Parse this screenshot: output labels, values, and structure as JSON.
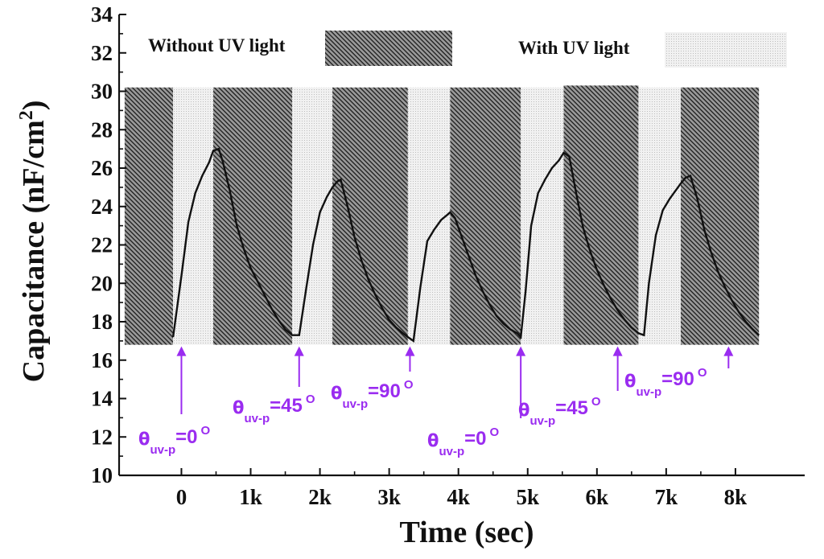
{
  "chart_data": {
    "type": "line",
    "xlabel": "Time (sec)",
    "ylabel": "Capacitance (nF/cm",
    "ylabel_sup": "2",
    "ylabel_close": ")",
    "xlim": [
      -900,
      9000
    ],
    "ylim": [
      10,
      34
    ],
    "x_ticks": [
      0,
      1000,
      2000,
      3000,
      4000,
      5000,
      6000,
      7000,
      8000
    ],
    "x_tick_labels": [
      "0",
      "1k",
      "2k",
      "3k",
      "4k",
      "5k",
      "6k",
      "7k",
      "8k"
    ],
    "y_ticks": [
      10,
      12,
      14,
      16,
      18,
      20,
      22,
      24,
      26,
      28,
      30,
      32,
      34
    ],
    "y_tick_labels": [
      "10",
      "12",
      "14",
      "16",
      "18",
      "20",
      "22",
      "24",
      "26",
      "28",
      "30",
      "32",
      "34"
    ],
    "legend": [
      {
        "label": "Without UV light",
        "pattern": "hatch-dark"
      },
      {
        "label": "With UV light",
        "pattern": "dots-light"
      }
    ],
    "shaded_regions": [
      {
        "x": [
          -820,
          -120
        ],
        "y": [
          16.8,
          30.2
        ],
        "state": "without_uv"
      },
      {
        "x": [
          -120,
          460
        ],
        "y": [
          16.8,
          30.2
        ],
        "state": "with_uv"
      },
      {
        "x": [
          460,
          1600
        ],
        "y": [
          16.8,
          30.2
        ],
        "state": "without_uv"
      },
      {
        "x": [
          1600,
          2180
        ],
        "y": [
          16.8,
          30.2
        ],
        "state": "with_uv"
      },
      {
        "x": [
          2180,
          3270
        ],
        "y": [
          16.8,
          30.2
        ],
        "state": "without_uv"
      },
      {
        "x": [
          3270,
          3880
        ],
        "y": [
          16.8,
          30.2
        ],
        "state": "with_uv"
      },
      {
        "x": [
          3880,
          4900
        ],
        "y": [
          16.8,
          30.2
        ],
        "state": "without_uv"
      },
      {
        "x": [
          4900,
          5520
        ],
        "y": [
          16.8,
          30.2
        ],
        "state": "with_uv"
      },
      {
        "x": [
          5520,
          6600
        ],
        "y": [
          16.8,
          30.3
        ],
        "state": "without_uv"
      },
      {
        "x": [
          6600,
          7210
        ],
        "y": [
          16.8,
          30.2
        ],
        "state": "with_uv"
      },
      {
        "x": [
          7210,
          8340
        ],
        "y": [
          16.8,
          30.2
        ],
        "state": "without_uv"
      }
    ],
    "series": [
      {
        "name": "Capacitance",
        "x": [
          -120,
          0,
          100,
          200,
          300,
          400,
          460,
          540,
          600,
          700,
          800,
          900,
          1000,
          1100,
          1200,
          1300,
          1400,
          1500,
          1600,
          1700,
          1800,
          1900,
          2000,
          2100,
          2180,
          2250,
          2300,
          2400,
          2500,
          2600,
          2700,
          2800,
          2900,
          3000,
          3100,
          3200,
          3270,
          3350,
          3450,
          3550,
          3650,
          3750,
          3850,
          3880,
          3950,
          4050,
          4150,
          4250,
          4350,
          4450,
          4550,
          4650,
          4750,
          4850,
          4900,
          4970,
          5050,
          5150,
          5250,
          5350,
          5450,
          5520,
          5600,
          5700,
          5800,
          5900,
          6000,
          6100,
          6200,
          6300,
          6400,
          6500,
          6600,
          6680,
          6750,
          6850,
          6950,
          7050,
          7150,
          7210,
          7280,
          7350,
          7450,
          7550,
          7650,
          7750,
          7850,
          7950,
          8050,
          8150,
          8250,
          8340
        ],
        "y": [
          17.2,
          20.4,
          23.2,
          24.7,
          25.6,
          26.3,
          26.9,
          27.0,
          26.3,
          24.8,
          23.0,
          21.8,
          20.8,
          20.1,
          19.4,
          18.7,
          18.1,
          17.6,
          17.3,
          17.3,
          19.7,
          22.0,
          23.7,
          24.5,
          25.0,
          25.3,
          25.4,
          24.0,
          22.4,
          21.2,
          20.2,
          19.4,
          18.7,
          18.1,
          17.7,
          17.4,
          17.2,
          17.0,
          19.8,
          22.2,
          22.8,
          23.3,
          23.6,
          23.7,
          23.4,
          22.4,
          21.4,
          20.4,
          19.6,
          18.9,
          18.3,
          17.9,
          17.6,
          17.4,
          17.2,
          19.6,
          23.0,
          24.7,
          25.4,
          26.0,
          26.4,
          26.8,
          26.6,
          24.7,
          22.9,
          21.7,
          20.7,
          19.9,
          19.2,
          18.6,
          18.1,
          17.7,
          17.4,
          17.3,
          20.0,
          22.5,
          23.8,
          24.4,
          24.9,
          25.2,
          25.5,
          25.6,
          24.4,
          22.8,
          21.6,
          20.6,
          19.8,
          19.1,
          18.5,
          18.0,
          17.6,
          17.3
        ],
        "color": "#111111"
      }
    ],
    "annotations": [
      {
        "arrow_x": 0,
        "text": "=0",
        "theta": "θ",
        "sub": "uv-p",
        "sup": "O"
      },
      {
        "arrow_x": 1700,
        "text": "=45",
        "theta": "θ",
        "sub": "uv-p",
        "sup": "O"
      },
      {
        "arrow_x": 3300,
        "text": "=90",
        "theta": "θ",
        "sub": "uv-p",
        "sup": "O"
      },
      {
        "arrow_x": 4900,
        "text": "=0",
        "theta": "θ",
        "sub": "uv-p",
        "sup": "O"
      },
      {
        "arrow_x": 6300,
        "text": "=45",
        "theta": "θ",
        "sub": "uv-p",
        "sup": "O"
      },
      {
        "arrow_x": 7900,
        "text": "=90",
        "theta": "θ",
        "sub": "uv-p",
        "sup": "O"
      }
    ],
    "colors": {
      "annotation": "#9a2cf0",
      "line": "#111111",
      "axis": "#111111"
    }
  }
}
